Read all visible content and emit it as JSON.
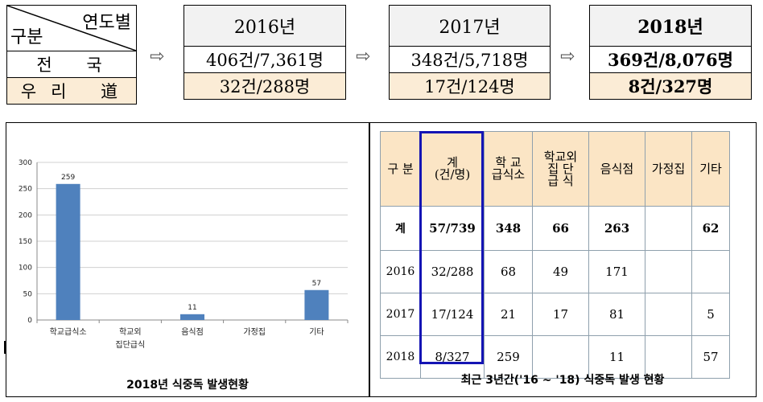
{
  "summary": {
    "header_years_label": "연도별",
    "header_category_label": "구분",
    "row_labels": [
      "전 국",
      "우리 道"
    ],
    "years": [
      {
        "label": "2016년",
        "national": "406건/7,361명",
        "regional": "32건/288명"
      },
      {
        "label": "2017년",
        "national": "348건/5,718명",
        "regional": "17건/124명"
      },
      {
        "label": "2018년",
        "national": "369건/8,076명",
        "regional": "8건/327명"
      }
    ],
    "arrow_glyph": "⇨",
    "colors": {
      "header_bg": "#f2f2f2",
      "regional_bg": "#fbecd6"
    }
  },
  "chart_caption": "2018년 식중독 발생현황",
  "table_caption": "최근 3년간('16 ~ '18) 식중독 발생 현황",
  "chart_data": {
    "type": "bar",
    "title": "",
    "xlabel": "",
    "ylabel": "",
    "categories": [
      "학교급식소",
      "학교외 집단급식",
      "음식점",
      "가정집",
      "기타"
    ],
    "category_lines": [
      [
        "학교급식소"
      ],
      [
        "학교외",
        "집단급식"
      ],
      [
        "음식점"
      ],
      [
        "가정집"
      ],
      [
        "기타"
      ]
    ],
    "values": [
      259,
      null,
      11,
      null,
      57
    ],
    "data_labels": [
      "259",
      "",
      "11",
      "",
      "57"
    ],
    "ylim": [
      0,
      300
    ],
    "yticks": [
      0,
      50,
      100,
      150,
      200,
      250,
      300
    ],
    "grid": true,
    "legend": "none",
    "bar_color": "#4f81bd"
  },
  "stats_table": {
    "headers": [
      {
        "lines": [
          "구 분"
        ]
      },
      {
        "lines": [
          "계",
          "(건/명)"
        ]
      },
      {
        "lines": [
          "학  교",
          "급식소"
        ]
      },
      {
        "lines": [
          "학교외",
          "집  단",
          "급  식"
        ]
      },
      {
        "lines": [
          "음식점"
        ]
      },
      {
        "lines": [
          "가정집"
        ]
      },
      {
        "lines": [
          "기타"
        ]
      }
    ],
    "rows": [
      [
        "계",
        "57/739",
        "348",
        "66",
        "263",
        "",
        "62"
      ],
      [
        "2016",
        "32/288",
        "68",
        "49",
        "171",
        "",
        ""
      ],
      [
        "2017",
        "17/124",
        "21",
        "17",
        "81",
        "",
        "5"
      ],
      [
        "2018",
        "8/327",
        "259",
        "",
        "11",
        "",
        "57"
      ]
    ],
    "colors": {
      "header_bg": "#fbe5c5",
      "highlight_border": "#1414b4"
    }
  }
}
